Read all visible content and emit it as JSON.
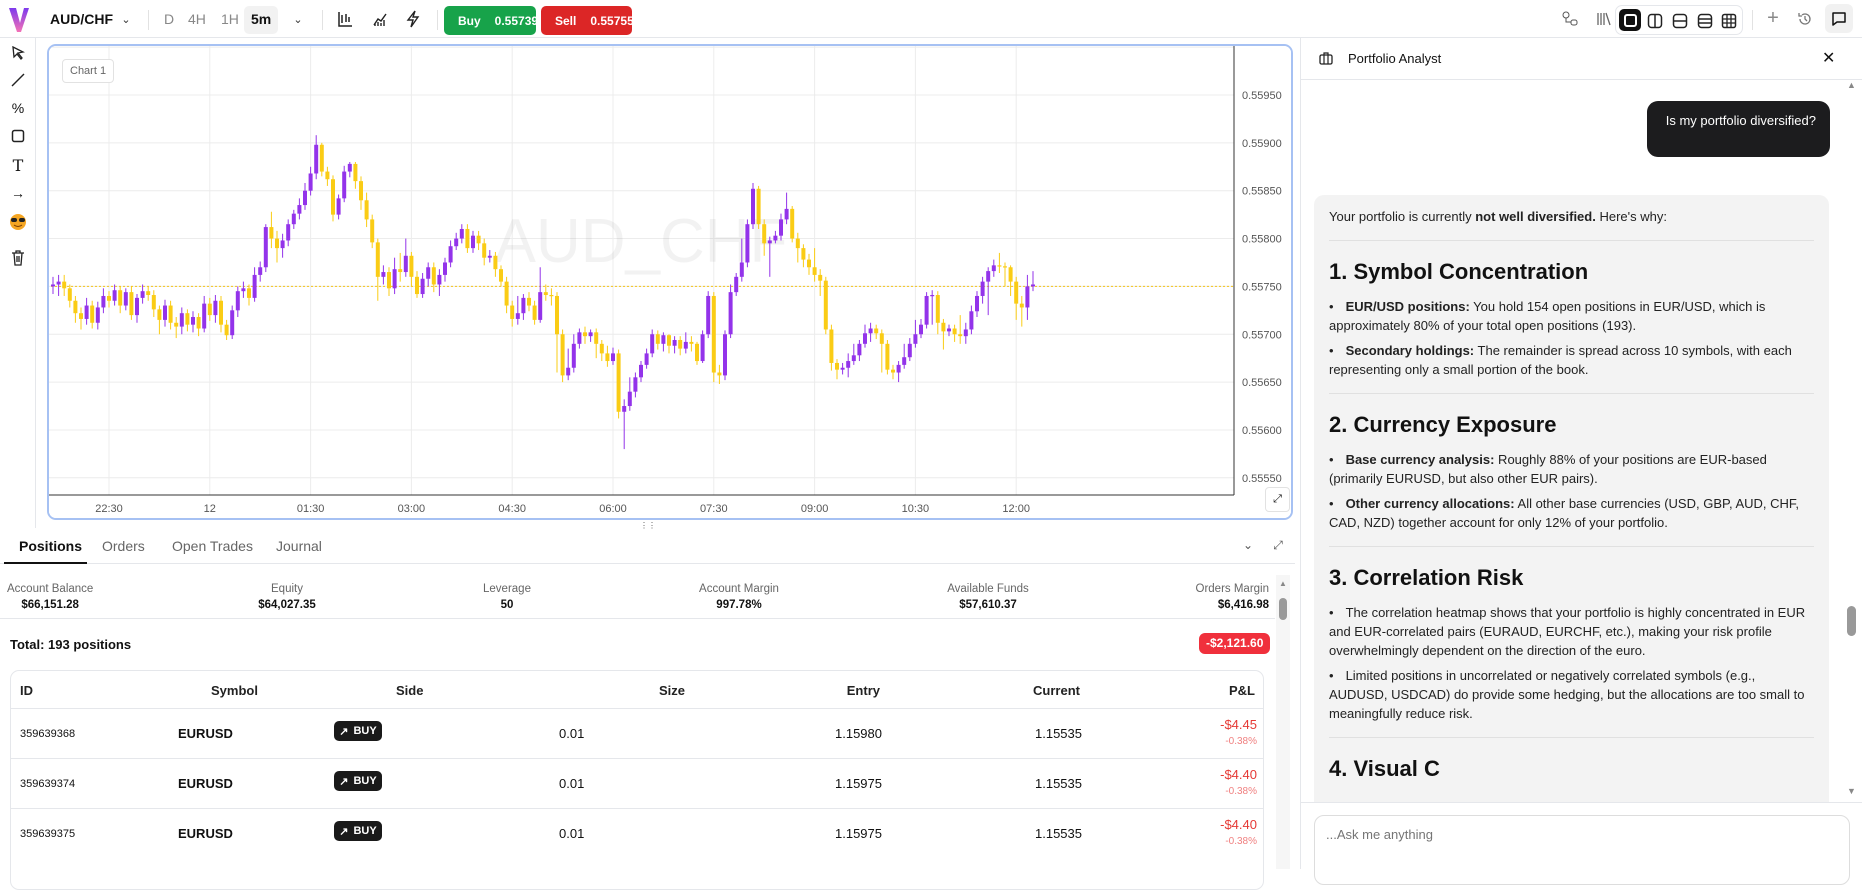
{
  "toolbar": {
    "symbol": "AUD/CHF",
    "timeframes": [
      "D",
      "4H",
      "1H",
      "5m"
    ],
    "active_timeframe": "5m",
    "buy_label": "Buy",
    "buy_price": "0.55739",
    "sell_label": "Sell",
    "sell_price": "0.55755",
    "colors": {
      "buy": "#17a34a",
      "sell": "#dc2626"
    }
  },
  "chart_tab_label": "Chart 1",
  "chart_data": {
    "type": "candlestick",
    "symbol_watermark": "AUD_CHF",
    "interval": "5m",
    "current_price": 0.5575,
    "ylim": [
      0.5553,
      0.56
    ],
    "y_ticks": [
      "0.55950",
      "0.55900",
      "0.55850",
      "0.55800",
      "0.55750",
      "0.55700",
      "0.55650",
      "0.55600",
      "0.55550"
    ],
    "x_ticks": [
      {
        "label": "22:30",
        "index": 10
      },
      {
        "label": "12",
        "index": 28
      },
      {
        "label": "01:30",
        "index": 46
      },
      {
        "label": "03:00",
        "index": 64
      },
      {
        "label": "04:30",
        "index": 82
      },
      {
        "label": "06:00",
        "index": 100
      },
      {
        "label": "07:30",
        "index": 118
      },
      {
        "label": "09:00",
        "index": 136
      },
      {
        "label": "10:30",
        "index": 154
      },
      {
        "label": "12:00",
        "index": 172
      }
    ],
    "grid": true,
    "colors": {
      "up": "#9333ea",
      "down": "#facc15",
      "price_line": "#f5c518"
    },
    "candles_ohlc": [
      [
        0.5575,
        0.5576,
        0.55742,
        0.55752
      ],
      [
        0.55752,
        0.55762,
        0.5574,
        0.55755
      ],
      [
        0.55755,
        0.55762,
        0.5574,
        0.55748
      ],
      [
        0.55748,
        0.55752,
        0.55728,
        0.55735
      ],
      [
        0.55735,
        0.5574,
        0.55712,
        0.55722
      ],
      [
        0.55722,
        0.55728,
        0.55705,
        0.55716
      ],
      [
        0.55716,
        0.55738,
        0.5571,
        0.5573
      ],
      [
        0.5573,
        0.55735,
        0.55706,
        0.55712
      ],
      [
        0.55712,
        0.55734,
        0.55705,
        0.55728
      ],
      [
        0.55728,
        0.55748,
        0.55722,
        0.5574
      ],
      [
        0.5574,
        0.55745,
        0.55728,
        0.55735
      ],
      [
        0.55735,
        0.55752,
        0.5573,
        0.55746
      ],
      [
        0.55746,
        0.5575,
        0.55722,
        0.5573
      ],
      [
        0.5573,
        0.55748,
        0.55725,
        0.55744
      ],
      [
        0.55744,
        0.5575,
        0.55715,
        0.5572
      ],
      [
        0.5572,
        0.55742,
        0.55712,
        0.55738
      ],
      [
        0.55738,
        0.55752,
        0.55732,
        0.55745
      ],
      [
        0.55745,
        0.5575,
        0.55735,
        0.55741
      ],
      [
        0.55741,
        0.55746,
        0.55718,
        0.55726
      ],
      [
        0.55726,
        0.5573,
        0.557,
        0.55715
      ],
      [
        0.55715,
        0.55736,
        0.55708,
        0.5573
      ],
      [
        0.5573,
        0.55735,
        0.55705,
        0.55712
      ],
      [
        0.55712,
        0.55718,
        0.55696,
        0.55708
      ],
      [
        0.55708,
        0.55728,
        0.557,
        0.55722
      ],
      [
        0.55722,
        0.55726,
        0.55703,
        0.5571
      ],
      [
        0.5571,
        0.55724,
        0.55702,
        0.55718
      ],
      [
        0.55718,
        0.55722,
        0.55698,
        0.55706
      ],
      [
        0.55706,
        0.5574,
        0.55702,
        0.55732
      ],
      [
        0.55732,
        0.55738,
        0.55714,
        0.5572
      ],
      [
        0.5572,
        0.55741,
        0.55712,
        0.55735
      ],
      [
        0.55735,
        0.5574,
        0.55702,
        0.5571
      ],
      [
        0.5571,
        0.55715,
        0.55694,
        0.55699
      ],
      [
        0.55699,
        0.5573,
        0.55695,
        0.55725
      ],
      [
        0.55725,
        0.5575,
        0.55718,
        0.55745
      ],
      [
        0.55745,
        0.55755,
        0.55738,
        0.55748
      ],
      [
        0.55748,
        0.55752,
        0.5573,
        0.55738
      ],
      [
        0.55738,
        0.5577,
        0.55734,
        0.55762
      ],
      [
        0.55762,
        0.55776,
        0.55755,
        0.5577
      ],
      [
        0.5577,
        0.55815,
        0.55765,
        0.55812
      ],
      [
        0.55812,
        0.55828,
        0.5579,
        0.558
      ],
      [
        0.558,
        0.55808,
        0.55775,
        0.5579
      ],
      [
        0.5579,
        0.55805,
        0.5578,
        0.55798
      ],
      [
        0.55798,
        0.5582,
        0.55792,
        0.55815
      ],
      [
        0.55815,
        0.5583,
        0.5581,
        0.55826
      ],
      [
        0.55826,
        0.55842,
        0.5582,
        0.55835
      ],
      [
        0.55835,
        0.55858,
        0.5583,
        0.5585
      ],
      [
        0.5585,
        0.55875,
        0.55845,
        0.55868
      ],
      [
        0.55868,
        0.55908,
        0.55862,
        0.55898
      ],
      [
        0.55898,
        0.559,
        0.55865,
        0.5587
      ],
      [
        0.5587,
        0.55875,
        0.55855,
        0.55862
      ],
      [
        0.55862,
        0.55866,
        0.55818,
        0.55825
      ],
      [
        0.55825,
        0.55846,
        0.5582,
        0.55842
      ],
      [
        0.55842,
        0.55876,
        0.55838,
        0.5587
      ],
      [
        0.5587,
        0.5588,
        0.55864,
        0.55878
      ],
      [
        0.55878,
        0.5588,
        0.55852,
        0.5586
      ],
      [
        0.5586,
        0.55865,
        0.5583,
        0.5584
      ],
      [
        0.5584,
        0.55848,
        0.55812,
        0.5582
      ],
      [
        0.5582,
        0.55825,
        0.5579,
        0.55796
      ],
      [
        0.55796,
        0.558,
        0.55735,
        0.5576
      ],
      [
        0.5576,
        0.55772,
        0.55752,
        0.55765
      ],
      [
        0.55765,
        0.5577,
        0.5574,
        0.55748
      ],
      [
        0.55748,
        0.5578,
        0.55742,
        0.55768
      ],
      [
        0.55768,
        0.55785,
        0.55755,
        0.55765
      ],
      [
        0.55765,
        0.558,
        0.5576,
        0.55782
      ],
      [
        0.55782,
        0.55786,
        0.5575,
        0.5576
      ],
      [
        0.5576,
        0.55766,
        0.55738,
        0.55742
      ],
      [
        0.55742,
        0.55764,
        0.55738,
        0.55758
      ],
      [
        0.55758,
        0.55775,
        0.5575,
        0.5577
      ],
      [
        0.5577,
        0.55775,
        0.55744,
        0.55752
      ],
      [
        0.55752,
        0.55768,
        0.5574,
        0.55762
      ],
      [
        0.55762,
        0.5578,
        0.55755,
        0.55775
      ],
      [
        0.55775,
        0.55798,
        0.5577,
        0.55792
      ],
      [
        0.55792,
        0.55806,
        0.55788,
        0.558
      ],
      [
        0.558,
        0.55815,
        0.55795,
        0.5581
      ],
      [
        0.5581,
        0.55815,
        0.55785,
        0.5579
      ],
      [
        0.5579,
        0.55808,
        0.55785,
        0.55803
      ],
      [
        0.55803,
        0.55808,
        0.55788,
        0.55795
      ],
      [
        0.55795,
        0.558,
        0.55772,
        0.5578
      ],
      [
        0.5578,
        0.55788,
        0.55775,
        0.55782
      ],
      [
        0.55782,
        0.55786,
        0.5576,
        0.55768
      ],
      [
        0.55768,
        0.55772,
        0.5575,
        0.55755
      ],
      [
        0.55755,
        0.5576,
        0.55722,
        0.5573
      ],
      [
        0.5573,
        0.55735,
        0.55708,
        0.55716
      ],
      [
        0.55716,
        0.5574,
        0.5571,
        0.55722
      ],
      [
        0.55722,
        0.55742,
        0.55715,
        0.55738
      ],
      [
        0.55738,
        0.55744,
        0.55724,
        0.5573
      ],
      [
        0.5573,
        0.55735,
        0.5571,
        0.55715
      ],
      [
        0.55715,
        0.5577,
        0.55712,
        0.55744
      ],
      [
        0.55744,
        0.55752,
        0.55735,
        0.55741
      ],
      [
        0.55741,
        0.55748,
        0.5573,
        0.5574
      ],
      [
        0.5574,
        0.55744,
        0.5566,
        0.557
      ],
      [
        0.557,
        0.55705,
        0.5565,
        0.55657
      ],
      [
        0.55657,
        0.55685,
        0.55652,
        0.55665
      ],
      [
        0.55665,
        0.557,
        0.5566,
        0.5569
      ],
      [
        0.5569,
        0.55706,
        0.55685,
        0.55702
      ],
      [
        0.55702,
        0.55708,
        0.5569,
        0.55698
      ],
      [
        0.55698,
        0.55705,
        0.55692,
        0.55702
      ],
      [
        0.55702,
        0.55706,
        0.55675,
        0.5569
      ],
      [
        0.5569,
        0.55694,
        0.55672,
        0.5568
      ],
      [
        0.5568,
        0.55688,
        0.55666,
        0.55672
      ],
      [
        0.55672,
        0.55686,
        0.55668,
        0.5568
      ],
      [
        0.5568,
        0.55684,
        0.55612,
        0.55619
      ],
      [
        0.55619,
        0.55632,
        0.5558,
        0.55625
      ],
      [
        0.55625,
        0.55655,
        0.5562,
        0.5564
      ],
      [
        0.5564,
        0.5566,
        0.55634,
        0.55655
      ],
      [
        0.55655,
        0.55672,
        0.5565,
        0.55668
      ],
      [
        0.55668,
        0.55685,
        0.55664,
        0.5568
      ],
      [
        0.5568,
        0.55705,
        0.55676,
        0.557
      ],
      [
        0.557,
        0.55704,
        0.55684,
        0.5569
      ],
      [
        0.5569,
        0.55702,
        0.55682,
        0.55699
      ],
      [
        0.55699,
        0.557,
        0.5568,
        0.55688
      ],
      [
        0.55688,
        0.55698,
        0.5568,
        0.55694
      ],
      [
        0.55694,
        0.55698,
        0.55678,
        0.55685
      ],
      [
        0.55685,
        0.55702,
        0.5568,
        0.55692
      ],
      [
        0.55692,
        0.55698,
        0.55682,
        0.5569
      ],
      [
        0.5569,
        0.55692,
        0.55668,
        0.55672
      ],
      [
        0.55672,
        0.55704,
        0.5567,
        0.557
      ],
      [
        0.557,
        0.55745,
        0.55696,
        0.5574
      ],
      [
        0.5574,
        0.55744,
        0.5565,
        0.5566
      ],
      [
        0.5566,
        0.55668,
        0.55648,
        0.55657
      ],
      [
        0.55657,
        0.55704,
        0.55652,
        0.557
      ],
      [
        0.557,
        0.55752,
        0.55696,
        0.55744
      ],
      [
        0.55744,
        0.55764,
        0.5574,
        0.5576
      ],
      [
        0.5576,
        0.558,
        0.55755,
        0.55775
      ],
      [
        0.55775,
        0.5582,
        0.5577,
        0.55815
      ],
      [
        0.55815,
        0.55858,
        0.5581,
        0.55852
      ],
      [
        0.55852,
        0.55855,
        0.5581,
        0.55815
      ],
      [
        0.55815,
        0.5582,
        0.55782,
        0.55795
      ],
      [
        0.55795,
        0.55802,
        0.5576,
        0.55798
      ],
      [
        0.55798,
        0.55808,
        0.55795,
        0.55803
      ],
      [
        0.55803,
        0.55826,
        0.55798,
        0.5582
      ],
      [
        0.5582,
        0.55848,
        0.55815,
        0.55831
      ],
      [
        0.55831,
        0.55834,
        0.55796,
        0.558
      ],
      [
        0.558,
        0.55806,
        0.55775,
        0.5579
      ],
      [
        0.5579,
        0.55794,
        0.5577,
        0.55778
      ],
      [
        0.55778,
        0.55784,
        0.55762,
        0.5577
      ],
      [
        0.5577,
        0.5579,
        0.55755,
        0.55762
      ],
      [
        0.55762,
        0.55768,
        0.5574,
        0.55756
      ],
      [
        0.55756,
        0.5576,
        0.557,
        0.55705
      ],
      [
        0.55705,
        0.5571,
        0.55662,
        0.5567
      ],
      [
        0.5567,
        0.55674,
        0.55653,
        0.55663
      ],
      [
        0.55663,
        0.5567,
        0.55658,
        0.55665
      ],
      [
        0.55665,
        0.5568,
        0.55655,
        0.55672
      ],
      [
        0.55672,
        0.5569,
        0.55668,
        0.55678
      ],
      [
        0.55678,
        0.55694,
        0.55672,
        0.5569
      ],
      [
        0.5569,
        0.5571,
        0.55686,
        0.55701
      ],
      [
        0.55701,
        0.55712,
        0.55692,
        0.55706
      ],
      [
        0.55706,
        0.5571,
        0.55695,
        0.55701
      ],
      [
        0.55701,
        0.55705,
        0.5566,
        0.5569
      ],
      [
        0.5569,
        0.55694,
        0.55658,
        0.55663
      ],
      [
        0.55663,
        0.55668,
        0.55653,
        0.5566
      ],
      [
        0.5566,
        0.55672,
        0.5565,
        0.55668
      ],
      [
        0.55668,
        0.5569,
        0.55664,
        0.55676
      ],
      [
        0.55676,
        0.55696,
        0.55672,
        0.5569
      ],
      [
        0.5569,
        0.55715,
        0.55686,
        0.557
      ],
      [
        0.557,
        0.55716,
        0.55696,
        0.5571
      ],
      [
        0.5571,
        0.55744,
        0.55706,
        0.5574
      ],
      [
        0.5574,
        0.55746,
        0.5571,
        0.55741
      ],
      [
        0.55741,
        0.55745,
        0.557,
        0.55712
      ],
      [
        0.55712,
        0.55716,
        0.55684,
        0.55703
      ],
      [
        0.55703,
        0.5571,
        0.55698,
        0.55706
      ],
      [
        0.55706,
        0.5571,
        0.55692,
        0.557
      ],
      [
        0.557,
        0.5572,
        0.5569,
        0.55698
      ],
      [
        0.55698,
        0.55712,
        0.5569,
        0.55705
      ],
      [
        0.55705,
        0.5573,
        0.557,
        0.55724
      ],
      [
        0.55724,
        0.55745,
        0.55718,
        0.5574
      ],
      [
        0.5574,
        0.5576,
        0.55732,
        0.55755
      ],
      [
        0.55755,
        0.5577,
        0.5572,
        0.55766
      ],
      [
        0.55766,
        0.55778,
        0.5576,
        0.55772
      ],
      [
        0.55772,
        0.55785,
        0.55764,
        0.55771
      ],
      [
        0.55771,
        0.55775,
        0.5575,
        0.5577
      ],
      [
        0.5577,
        0.55772,
        0.5574,
        0.55755
      ],
      [
        0.55755,
        0.5576,
        0.55715,
        0.55732
      ],
      [
        0.55732,
        0.5574,
        0.55708,
        0.55728
      ],
      [
        0.55728,
        0.55762,
        0.55715,
        0.5575
      ],
      [
        0.5575,
        0.55766,
        0.55745,
        0.55752
      ]
    ]
  },
  "bottom": {
    "tabs": [
      "Positions",
      "Orders",
      "Open Trades",
      "Journal"
    ],
    "active_tab": "Positions",
    "stats": [
      {
        "label": "Account Balance",
        "value": "$66,151.28"
      },
      {
        "label": "Equity",
        "value": "$64,027.35"
      },
      {
        "label": "Leverage",
        "value": "50"
      },
      {
        "label": "Account Margin",
        "value": "997.78%"
      },
      {
        "label": "Available Funds",
        "value": "$57,610.37"
      },
      {
        "label": "Orders Margin",
        "value": "$6,416.98"
      }
    ],
    "total_label": "Total: 193 positions",
    "total_pnl": "-$2,121.60",
    "columns": [
      "ID",
      "Symbol",
      "Side",
      "Size",
      "Entry",
      "Current",
      "P&L"
    ],
    "rows": [
      {
        "id": "359639368",
        "symbol": "EURUSD",
        "side": "BUY",
        "size": "0.01",
        "entry": "1.15980",
        "current": "1.15535",
        "pnl": "-$4.45",
        "pnl_pct": "-0.38%"
      },
      {
        "id": "359639374",
        "symbol": "EURUSD",
        "side": "BUY",
        "size": "0.01",
        "entry": "1.15975",
        "current": "1.15535",
        "pnl": "-$4.40",
        "pnl_pct": "-0.38%"
      },
      {
        "id": "359639375",
        "symbol": "EURUSD",
        "side": "BUY",
        "size": "0.01",
        "entry": "1.15975",
        "current": "1.15535",
        "pnl": "-$4.40",
        "pnl_pct": "-0.38%"
      }
    ]
  },
  "chat": {
    "title": "Portfolio Analyst",
    "user_message": "Is my portfolio diversified?",
    "intro": {
      "pre": "Your portfolio is currently ",
      "bold": "not well diversified.",
      "post": " Here's why:"
    },
    "sections": [
      {
        "heading": "1. Symbol Concentration",
        "bullets": [
          {
            "bold": "EUR/USD positions:",
            "text": " You hold 154 open positions in EUR/USD, which is approximately 80% of your total open positions (193)."
          },
          {
            "bold": "Secondary holdings:",
            "text": " The remainder is spread across 10 symbols, with each representing only a small portion of the book."
          }
        ]
      },
      {
        "heading": "2. Currency Exposure",
        "bullets": [
          {
            "bold": "Base currency analysis:",
            "text": " Roughly 88% of your positions are EUR-based (primarily EURUSD, but also other EUR pairs)."
          },
          {
            "bold": "Other currency allocations:",
            "text": " All other base currencies (USD, GBP, AUD, CHF, CAD, NZD) together account for only 12% of your portfolio."
          }
        ]
      },
      {
        "heading": "3. Correlation Risk",
        "bullets": [
          {
            "bold": "",
            "text": "The correlation heatmap shows that your portfolio is highly concentrated in EUR and EUR-correlated pairs (EURAUD, EURCHF, etc.), making your risk profile overwhelmingly dependent on the direction of the euro."
          },
          {
            "bold": "",
            "text": "Limited positions in uncorrelated or negatively correlated symbols (e.g., AUDUSD, USDCAD) do provide some hedging, but the allocations are too small to meaningfully reduce risk."
          }
        ]
      },
      {
        "heading": "4. Visual C",
        "bullets": []
      }
    ],
    "input_placeholder": "...Ask me anything"
  }
}
